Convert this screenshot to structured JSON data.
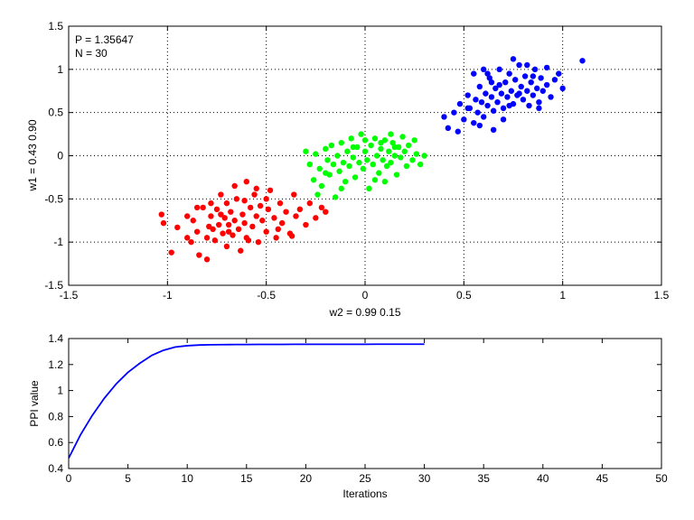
{
  "chart_data": [
    {
      "type": "scatter",
      "xlabel": "w2 = 0.99  0.15",
      "ylabel": "w1 = 0.43  0.90",
      "xlim": [
        -1.5,
        1.5
      ],
      "ylim": [
        -1.5,
        1.5
      ],
      "xticks": [
        -1.5,
        -1,
        -0.5,
        0,
        0.5,
        1,
        1.5
      ],
      "yticks": [
        -1.5,
        -1,
        -0.5,
        0,
        0.5,
        1,
        1.5
      ],
      "xtick_labels": [
        "-1.5",
        "-1",
        "-0.5",
        "0",
        "0.5",
        "1",
        "1.5"
      ],
      "ytick_labels": [
        "-1.5",
        "-1",
        "-0.5",
        "0",
        "0.5",
        "1",
        "1.5"
      ],
      "grid": true,
      "annotations": [
        "P = 1.35647",
        "N = 30"
      ],
      "series": [
        {
          "color": "#ff0000",
          "center": [
            -0.7,
            -0.72
          ],
          "points": [
            [
              -1.03,
              -0.68
            ],
            [
              -1.02,
              -0.78
            ],
            [
              -0.98,
              -1.12
            ],
            [
              -0.95,
              -0.83
            ],
            [
              -0.9,
              -0.95
            ],
            [
              -0.88,
              -1.0
            ],
            [
              -0.87,
              -0.75
            ],
            [
              -0.85,
              -0.88
            ],
            [
              -0.84,
              -1.15
            ],
            [
              -0.82,
              -0.6
            ],
            [
              -0.8,
              -0.95
            ],
            [
              -0.8,
              -1.2
            ],
            [
              -0.78,
              -0.7
            ],
            [
              -0.77,
              -0.85
            ],
            [
              -0.76,
              -0.98
            ],
            [
              -0.75,
              -0.62
            ],
            [
              -0.74,
              -0.8
            ],
            [
              -0.73,
              -0.45
            ],
            [
              -0.72,
              -0.9
            ],
            [
              -0.71,
              -0.72
            ],
            [
              -0.7,
              -0.55
            ],
            [
              -0.7,
              -1.05
            ],
            [
              -0.69,
              -0.8
            ],
            [
              -0.68,
              -0.65
            ],
            [
              -0.67,
              -0.92
            ],
            [
              -0.66,
              -0.75
            ],
            [
              -0.65,
              -0.5
            ],
            [
              -0.64,
              -0.85
            ],
            [
              -0.63,
              -1.1
            ],
            [
              -0.62,
              -0.68
            ],
            [
              -0.61,
              -0.78
            ],
            [
              -0.6,
              -0.3
            ],
            [
              -0.6,
              -0.95
            ],
            [
              -0.58,
              -0.6
            ],
            [
              -0.57,
              -0.82
            ],
            [
              -0.56,
              -0.45
            ],
            [
              -0.55,
              -0.7
            ],
            [
              -0.54,
              -1.0
            ],
            [
              -0.53,
              -0.58
            ],
            [
              -0.52,
              -0.75
            ],
            [
              -0.5,
              -0.88
            ],
            [
              -0.49,
              -0.62
            ],
            [
              -0.48,
              -0.4
            ],
            [
              -0.46,
              -0.72
            ],
            [
              -0.45,
              -0.95
            ],
            [
              -0.43,
              -0.55
            ],
            [
              -0.42,
              -0.78
            ],
            [
              -0.4,
              -0.65
            ],
            [
              -0.38,
              -0.9
            ],
            [
              -0.36,
              -0.45
            ],
            [
              -0.35,
              -0.7
            ],
            [
              -0.33,
              -0.62
            ],
            [
              -0.3,
              -0.8
            ],
            [
              -0.28,
              -0.55
            ],
            [
              -0.25,
              -0.72
            ],
            [
              -0.22,
              -0.6
            ],
            [
              -0.2,
              -0.65
            ],
            [
              -0.37,
              -0.93
            ],
            [
              -0.78,
              -0.55
            ],
            [
              -0.66,
              -0.35
            ],
            [
              -0.59,
              -0.98
            ],
            [
              -0.73,
              -0.68
            ],
            [
              -0.69,
              -0.88
            ],
            [
              -0.61,
              -0.52
            ],
            [
              -0.79,
              -0.82
            ],
            [
              -0.9,
              -0.7
            ],
            [
              -0.55,
              -0.38
            ],
            [
              -0.5,
              -0.5
            ],
            [
              -0.44,
              -0.85
            ],
            [
              -0.85,
              -0.6
            ]
          ]
        },
        {
          "color": "#00ff00",
          "center": [
            -0.02,
            -0.05
          ],
          "points": [
            [
              -0.3,
              0.05
            ],
            [
              -0.28,
              -0.1
            ],
            [
              -0.26,
              -0.28
            ],
            [
              -0.25,
              0.02
            ],
            [
              -0.23,
              -0.15
            ],
            [
              -0.22,
              -0.35
            ],
            [
              -0.2,
              0.08
            ],
            [
              -0.19,
              -0.05
            ],
            [
              -0.18,
              -0.22
            ],
            [
              -0.17,
              0.12
            ],
            [
              -0.16,
              -0.1
            ],
            [
              -0.15,
              -0.48
            ],
            [
              -0.14,
              0.0
            ],
            [
              -0.13,
              -0.18
            ],
            [
              -0.12,
              0.15
            ],
            [
              -0.11,
              -0.08
            ],
            [
              -0.1,
              -0.3
            ],
            [
              -0.09,
              0.05
            ],
            [
              -0.08,
              -0.12
            ],
            [
              -0.07,
              0.2
            ],
            [
              -0.06,
              -0.02
            ],
            [
              -0.05,
              -0.25
            ],
            [
              -0.04,
              0.1
            ],
            [
              -0.03,
              -0.08
            ],
            [
              -0.02,
              0.25
            ],
            [
              -0.01,
              -0.15
            ],
            [
              0.0,
              0.05
            ],
            [
              0.01,
              -0.05
            ],
            [
              0.02,
              -0.38
            ],
            [
              0.03,
              0.12
            ],
            [
              0.04,
              -0.1
            ],
            [
              0.05,
              0.2
            ],
            [
              0.06,
              0.0
            ],
            [
              0.07,
              -0.2
            ],
            [
              0.08,
              0.08
            ],
            [
              0.09,
              -0.05
            ],
            [
              0.1,
              0.18
            ],
            [
              0.11,
              -0.12
            ],
            [
              0.12,
              0.05
            ],
            [
              0.13,
              -0.08
            ],
            [
              0.14,
              0.15
            ],
            [
              0.15,
              0.0
            ],
            [
              0.16,
              -0.22
            ],
            [
              0.17,
              0.1
            ],
            [
              0.18,
              -0.02
            ],
            [
              0.19,
              0.22
            ],
            [
              0.2,
              0.05
            ],
            [
              0.21,
              -0.12
            ],
            [
              0.22,
              0.12
            ],
            [
              0.24,
              -0.05
            ],
            [
              0.26,
              0.02
            ],
            [
              0.28,
              -0.1
            ],
            [
              0.3,
              0.0
            ],
            [
              0.1,
              -0.3
            ],
            [
              -0.24,
              -0.45
            ],
            [
              0.25,
              0.18
            ],
            [
              0.13,
              0.25
            ],
            [
              -0.12,
              -0.38
            ],
            [
              0.05,
              -0.28
            ],
            [
              -0.2,
              -0.2
            ],
            [
              0.15,
              0.1
            ],
            [
              0.0,
              0.18
            ],
            [
              -0.06,
              0.1
            ],
            [
              0.08,
              0.15
            ]
          ]
        },
        {
          "color": "#0000ff",
          "center": [
            0.72,
            0.72
          ],
          "points": [
            [
              0.4,
              0.45
            ],
            [
              0.42,
              0.32
            ],
            [
              0.45,
              0.5
            ],
            [
              0.47,
              0.28
            ],
            [
              0.48,
              0.6
            ],
            [
              0.5,
              0.42
            ],
            [
              0.52,
              0.7
            ],
            [
              0.53,
              0.55
            ],
            [
              0.55,
              0.38
            ],
            [
              0.56,
              0.65
            ],
            [
              0.57,
              0.5
            ],
            [
              0.58,
              0.8
            ],
            [
              0.59,
              0.62
            ],
            [
              0.6,
              0.45
            ],
            [
              0.61,
              0.72
            ],
            [
              0.62,
              0.58
            ],
            [
              0.63,
              0.9
            ],
            [
              0.64,
              0.68
            ],
            [
              0.65,
              0.52
            ],
            [
              0.66,
              0.78
            ],
            [
              0.67,
              0.62
            ],
            [
              0.68,
              1.0
            ],
            [
              0.69,
              0.72
            ],
            [
              0.7,
              0.55
            ],
            [
              0.71,
              0.85
            ],
            [
              0.72,
              0.68
            ],
            [
              0.73,
              0.95
            ],
            [
              0.74,
              0.75
            ],
            [
              0.75,
              0.6
            ],
            [
              0.76,
              0.88
            ],
            [
              0.77,
              0.7
            ],
            [
              0.78,
              1.05
            ],
            [
              0.79,
              0.8
            ],
            [
              0.8,
              0.65
            ],
            [
              0.81,
              0.92
            ],
            [
              0.82,
              0.75
            ],
            [
              0.83,
              0.58
            ],
            [
              0.84,
              0.85
            ],
            [
              0.85,
              0.7
            ],
            [
              0.86,
              1.0
            ],
            [
              0.87,
              0.78
            ],
            [
              0.88,
              0.62
            ],
            [
              0.89,
              0.9
            ],
            [
              0.9,
              0.75
            ],
            [
              0.92,
              0.82
            ],
            [
              0.94,
              0.68
            ],
            [
              0.96,
              0.88
            ],
            [
              0.98,
              0.95
            ],
            [
              1.0,
              0.78
            ],
            [
              1.1,
              1.1
            ],
            [
              0.55,
              0.95
            ],
            [
              0.6,
              1.0
            ],
            [
              0.75,
              1.12
            ],
            [
              0.82,
              1.05
            ],
            [
              0.92,
              1.02
            ],
            [
              0.58,
              0.35
            ],
            [
              0.65,
              0.3
            ],
            [
              0.7,
              0.42
            ],
            [
              0.68,
              0.82
            ],
            [
              0.78,
              0.72
            ],
            [
              0.73,
              0.58
            ],
            [
              0.64,
              0.85
            ],
            [
              0.85,
              0.92
            ],
            [
              0.88,
              0.55
            ],
            [
              0.52,
              0.55
            ],
            [
              0.62,
              0.95
            ]
          ]
        }
      ]
    },
    {
      "type": "line",
      "xlabel": "Iterations",
      "ylabel": "PPI value",
      "xlim": [
        0,
        50
      ],
      "ylim": [
        0.4,
        1.4
      ],
      "xticks": [
        0,
        5,
        10,
        15,
        20,
        25,
        30,
        35,
        40,
        45,
        50
      ],
      "yticks": [
        0.4,
        0.6,
        0.8,
        1,
        1.2,
        1.4
      ],
      "xtick_labels": [
        "0",
        "5",
        "10",
        "15",
        "20",
        "25",
        "30",
        "35",
        "40",
        "45",
        "50"
      ],
      "ytick_labels": [
        "0.4",
        "0.6",
        "0.8",
        "1",
        "1.2",
        "1.4"
      ],
      "grid": false,
      "series": [
        {
          "color": "#0000ff",
          "x": [
            0,
            1,
            2,
            3,
            4,
            5,
            6,
            7,
            8,
            9,
            10,
            11,
            12,
            13,
            14,
            15,
            16,
            17,
            18,
            19,
            20,
            21,
            22,
            23,
            24,
            25,
            26,
            27,
            28,
            29,
            30
          ],
          "values": [
            0.48,
            0.66,
            0.81,
            0.94,
            1.05,
            1.14,
            1.21,
            1.27,
            1.31,
            1.335,
            1.345,
            1.35,
            1.352,
            1.353,
            1.354,
            1.354,
            1.355,
            1.355,
            1.355,
            1.356,
            1.356,
            1.356,
            1.356,
            1.356,
            1.356,
            1.356,
            1.3565,
            1.3565,
            1.3565,
            1.3565,
            1.3565
          ]
        }
      ]
    }
  ]
}
